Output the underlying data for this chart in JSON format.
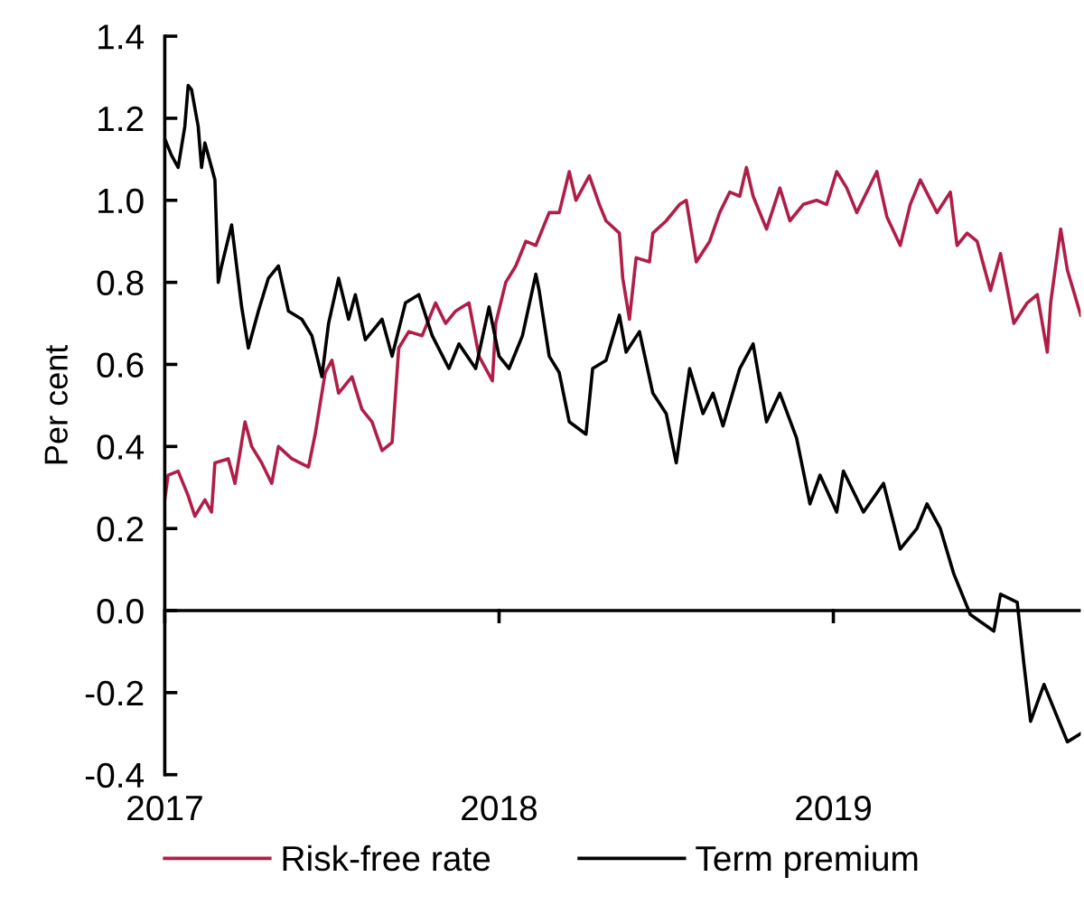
{
  "chart_data": {
    "type": "line",
    "ylabel": "Per cent",
    "xlim": [
      2017,
      2019.74
    ],
    "xticks": [
      2017,
      2018,
      2019
    ],
    "ylim": [
      -0.4,
      1.4
    ],
    "yticks": [
      {
        "value": -0.4,
        "label": "-0.4"
      },
      {
        "value": -0.2,
        "label": "-0.2"
      },
      {
        "value": 0,
        "label": "0.0"
      },
      {
        "value": 0.2,
        "label": "0.2"
      },
      {
        "value": 0.4,
        "label": "0.4"
      },
      {
        "value": 0.6,
        "label": "0.6"
      },
      {
        "value": 0.8,
        "label": "0.8"
      },
      {
        "value": 1,
        "label": "1.0"
      },
      {
        "value": 1.2,
        "label": "1.2"
      },
      {
        "value": 1.4,
        "label": "1.4"
      }
    ],
    "ref_lines": [
      {
        "axis": "y",
        "value": 0,
        "color": "#000000"
      }
    ],
    "grid": false,
    "legend": "bottom",
    "marker": "none",
    "line_style": "solid",
    "series": [
      {
        "name": "Risk-free rate",
        "color": "#b01e48",
        "x": [
          2017.0,
          2017.01,
          2017.04,
          2017.07,
          2017.09,
          2017.12,
          2017.14,
          2017.15,
          2017.19,
          2017.21,
          2017.24,
          2017.26,
          2017.29,
          2017.32,
          2017.34,
          2017.38,
          2017.43,
          2017.45,
          2017.48,
          2017.5,
          2017.52,
          2017.56,
          2017.59,
          2017.62,
          2017.65,
          2017.68,
          2017.7,
          2017.73,
          2017.77,
          2017.81,
          2017.84,
          2017.87,
          2017.91,
          2017.94,
          2017.98,
          2017.99,
          2018.02,
          2018.05,
          2018.08,
          2018.11,
          2018.15,
          2018.18,
          2018.21,
          2018.23,
          2018.27,
          2018.3,
          2018.32,
          2018.36,
          2018.37,
          2018.39,
          2018.41,
          2018.45,
          2018.46,
          2018.5,
          2018.54,
          2018.56,
          2018.59,
          2018.63,
          2018.66,
          2018.69,
          2018.72,
          2018.74,
          2018.76,
          2018.8,
          2018.84,
          2018.87,
          2018.91,
          2018.95,
          2018.98,
          2019.01,
          2019.04,
          2019.07,
          2019.13,
          2019.16,
          2019.2,
          2019.23,
          2019.26,
          2019.31,
          2019.35,
          2019.37,
          2019.4,
          2019.43,
          2019.47,
          2019.5,
          2019.54,
          2019.58,
          2019.61,
          2019.64,
          2019.65,
          2019.68,
          2019.7,
          2019.74
        ],
        "values": [
          0.27,
          0.33,
          0.34,
          0.28,
          0.23,
          0.27,
          0.24,
          0.36,
          0.37,
          0.31,
          0.46,
          0.4,
          0.36,
          0.31,
          0.4,
          0.37,
          0.35,
          0.43,
          0.58,
          0.61,
          0.53,
          0.57,
          0.49,
          0.46,
          0.39,
          0.41,
          0.64,
          0.68,
          0.67,
          0.75,
          0.7,
          0.73,
          0.75,
          0.62,
          0.56,
          0.7,
          0.8,
          0.84,
          0.9,
          0.89,
          0.97,
          0.97,
          1.07,
          1.0,
          1.06,
          0.99,
          0.95,
          0.92,
          0.81,
          0.71,
          0.86,
          0.85,
          0.92,
          0.95,
          0.99,
          1.0,
          0.85,
          0.9,
          0.97,
          1.02,
          1.01,
          1.08,
          1.01,
          0.93,
          1.03,
          0.95,
          0.99,
          1.0,
          0.99,
          1.07,
          1.03,
          0.97,
          1.07,
          0.96,
          0.89,
          0.99,
          1.05,
          0.97,
          1.02,
          0.89,
          0.92,
          0.9,
          0.78,
          0.87,
          0.7,
          0.75,
          0.77,
          0.63,
          0.75,
          0.93,
          0.83,
          0.72
        ]
      },
      {
        "name": "Term premium",
        "color": "#000000",
        "x": [
          2017.0,
          2017.02,
          2017.04,
          2017.06,
          2017.07,
          2017.08,
          2017.1,
          2017.11,
          2017.12,
          2017.15,
          2017.16,
          2017.17,
          2017.2,
          2017.23,
          2017.25,
          2017.28,
          2017.31,
          2017.34,
          2017.37,
          2017.41,
          2017.44,
          2017.47,
          2017.49,
          2017.52,
          2017.55,
          2017.57,
          2017.6,
          2017.65,
          2017.68,
          2017.72,
          2017.76,
          2017.8,
          2017.85,
          2017.88,
          2017.93,
          2017.97,
          2018.0,
          2018.03,
          2018.07,
          2018.11,
          2018.12,
          2018.15,
          2018.18,
          2018.21,
          2018.26,
          2018.28,
          2018.32,
          2018.36,
          2018.38,
          2018.42,
          2018.46,
          2018.5,
          2018.53,
          2018.57,
          2018.61,
          2018.64,
          2018.67,
          2018.72,
          2018.76,
          2018.8,
          2018.84,
          2018.89,
          2018.93,
          2018.96,
          2019.01,
          2019.03,
          2019.09,
          2019.15,
          2019.2,
          2019.25,
          2019.28,
          2019.32,
          2019.36,
          2019.41,
          2019.48,
          2019.5,
          2019.55,
          2019.57,
          2019.59,
          2019.63,
          2019.67,
          2019.7,
          2019.74
        ],
        "values": [
          1.15,
          1.11,
          1.08,
          1.18,
          1.28,
          1.27,
          1.18,
          1.08,
          1.14,
          1.05,
          0.8,
          0.84,
          0.94,
          0.74,
          0.64,
          0.73,
          0.81,
          0.84,
          0.73,
          0.71,
          0.67,
          0.57,
          0.7,
          0.81,
          0.71,
          0.77,
          0.66,
          0.71,
          0.62,
          0.75,
          0.77,
          0.67,
          0.59,
          0.65,
          0.59,
          0.74,
          0.62,
          0.59,
          0.67,
          0.82,
          0.78,
          0.62,
          0.58,
          0.46,
          0.43,
          0.59,
          0.61,
          0.72,
          0.63,
          0.68,
          0.53,
          0.48,
          0.36,
          0.59,
          0.48,
          0.53,
          0.45,
          0.59,
          0.65,
          0.46,
          0.53,
          0.42,
          0.26,
          0.33,
          0.24,
          0.34,
          0.24,
          0.31,
          0.15,
          0.2,
          0.26,
          0.2,
          0.09,
          -0.01,
          -0.05,
          0.04,
          0.02,
          -0.13,
          -0.27,
          -0.18,
          -0.26,
          -0.32,
          -0.3
        ]
      }
    ]
  }
}
